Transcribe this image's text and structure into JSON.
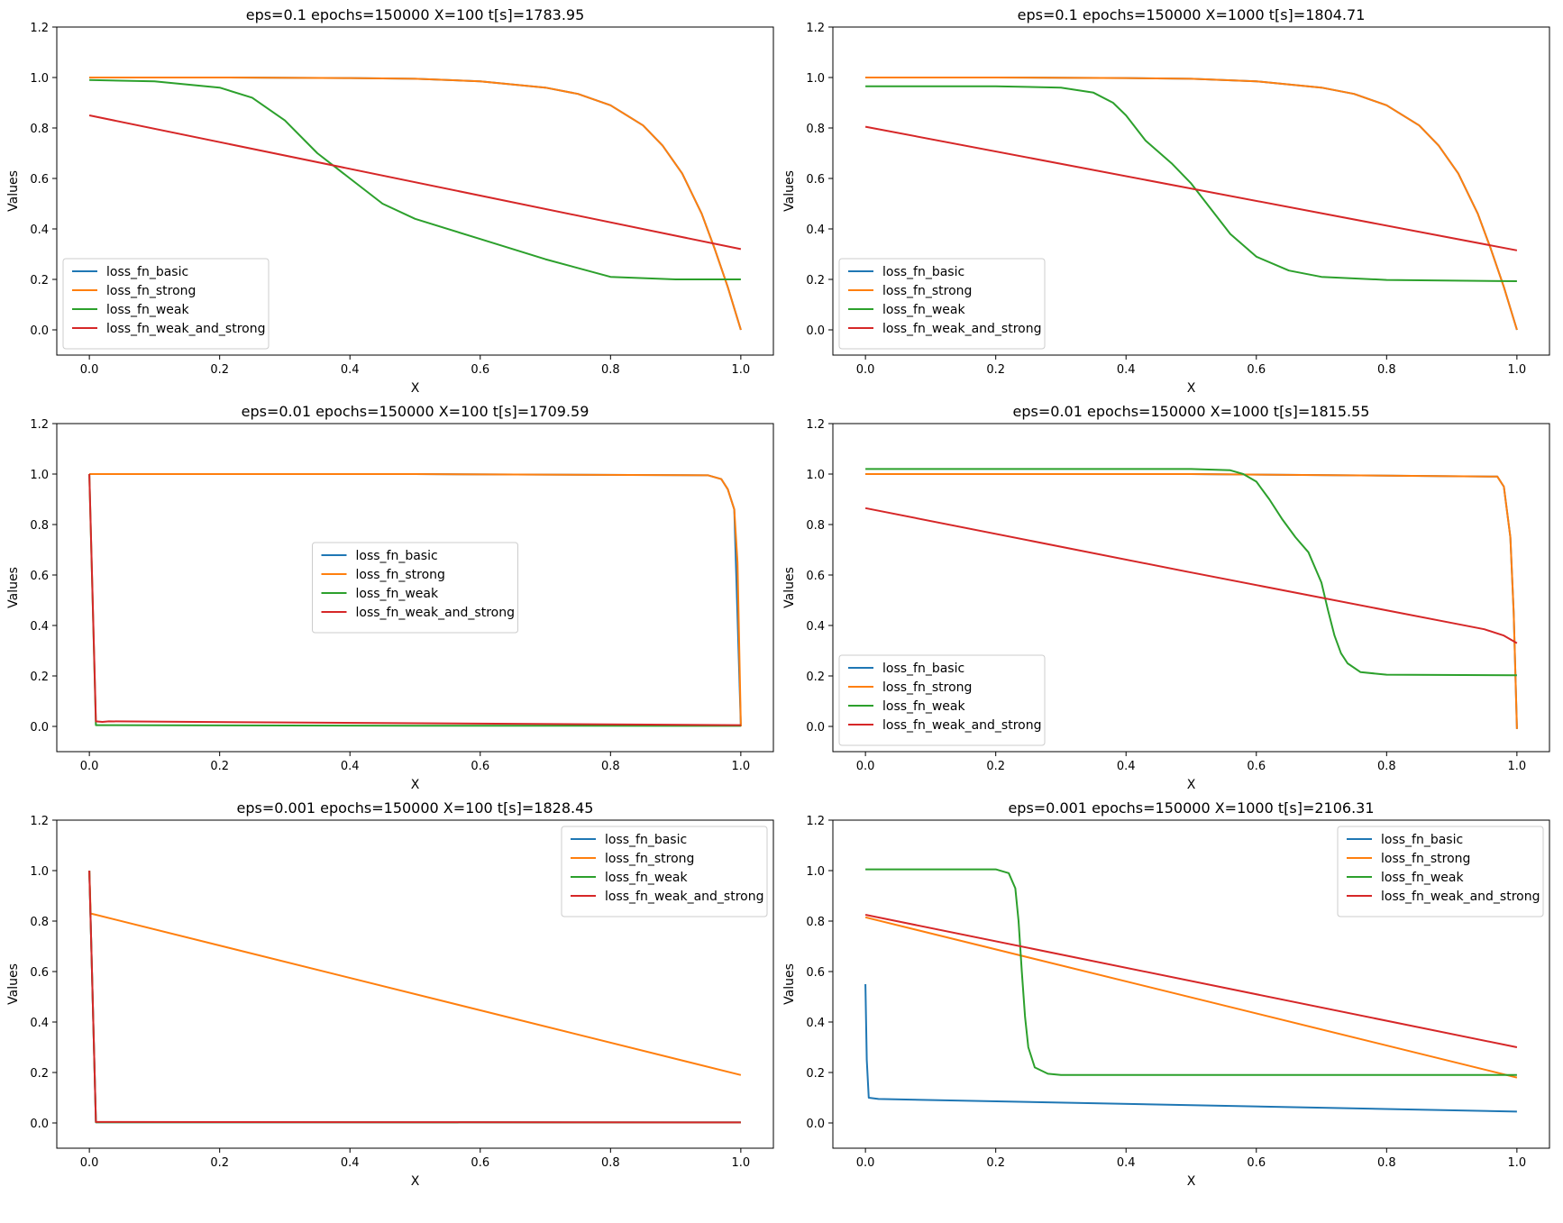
{
  "figure": {
    "series_names": [
      "loss_fn_basic",
      "loss_fn_strong",
      "loss_fn_weak",
      "loss_fn_weak_and_strong"
    ]
  },
  "colors": {
    "basic": "#1f77b4",
    "strong": "#ff7f0e",
    "weak": "#2ca02c",
    "weak_and_strong": "#d62728"
  },
  "chart_data": [
    {
      "type": "line",
      "title": "eps=0.1 epochs=150000 X=100 t[s]=1783.95",
      "xlabel": "X",
      "ylabel": "Values",
      "xlim": [
        -0.05,
        1.05
      ],
      "ylim": [
        -0.1,
        1.2
      ],
      "xticks": [
        "0.0",
        "0.2",
        "0.4",
        "0.6",
        "0.8",
        "1.0"
      ],
      "yticks": [
        "0.0",
        "0.2",
        "0.4",
        "0.6",
        "0.8",
        "1.0",
        "1.2"
      ],
      "legend": "lower-left",
      "series": [
        {
          "name": "loss_fn_basic",
          "color": "#1f77b4",
          "x": [
            0,
            0.2,
            0.4,
            0.5,
            0.6,
            0.7,
            0.75,
            0.8,
            0.85,
            0.88,
            0.91,
            0.94,
            0.96,
            0.98,
            1.0
          ],
          "y": [
            1.0,
            1.0,
            0.998,
            0.995,
            0.985,
            0.96,
            0.935,
            0.89,
            0.81,
            0.73,
            0.62,
            0.46,
            0.32,
            0.17,
            0.0
          ]
        },
        {
          "name": "loss_fn_strong",
          "color": "#ff7f0e",
          "x": [
            0,
            0.2,
            0.4,
            0.5,
            0.6,
            0.7,
            0.75,
            0.8,
            0.85,
            0.88,
            0.91,
            0.94,
            0.96,
            0.98,
            1.0
          ],
          "y": [
            1.0,
            1.0,
            0.998,
            0.995,
            0.985,
            0.96,
            0.935,
            0.89,
            0.81,
            0.73,
            0.62,
            0.46,
            0.32,
            0.17,
            0.0
          ]
        },
        {
          "name": "loss_fn_weak",
          "color": "#2ca02c",
          "x": [
            0,
            0.1,
            0.2,
            0.25,
            0.3,
            0.35,
            0.4,
            0.45,
            0.5,
            0.6,
            0.7,
            0.8,
            0.9,
            1.0
          ],
          "y": [
            0.99,
            0.985,
            0.96,
            0.92,
            0.83,
            0.7,
            0.6,
            0.5,
            0.44,
            0.36,
            0.28,
            0.21,
            0.2,
            0.2
          ]
        },
        {
          "name": "loss_fn_weak_and_strong",
          "color": "#d62728",
          "x": [
            0,
            1.0
          ],
          "y": [
            0.85,
            0.32
          ]
        }
      ]
    },
    {
      "type": "line",
      "title": "eps=0.1 epochs=150000 X=1000 t[s]=1804.71",
      "xlabel": "X",
      "ylabel": "Values",
      "xlim": [
        -0.05,
        1.05
      ],
      "ylim": [
        -0.1,
        1.2
      ],
      "xticks": [
        "0.0",
        "0.2",
        "0.4",
        "0.6",
        "0.8",
        "1.0"
      ],
      "yticks": [
        "0.0",
        "0.2",
        "0.4",
        "0.6",
        "0.8",
        "1.0",
        "1.2"
      ],
      "legend": "lower-left",
      "series": [
        {
          "name": "loss_fn_basic",
          "color": "#1f77b4",
          "x": [
            0,
            0.2,
            0.4,
            0.5,
            0.6,
            0.7,
            0.75,
            0.8,
            0.85,
            0.88,
            0.91,
            0.94,
            0.96,
            0.98,
            1.0
          ],
          "y": [
            1.0,
            1.0,
            0.998,
            0.995,
            0.985,
            0.96,
            0.935,
            0.89,
            0.81,
            0.73,
            0.62,
            0.46,
            0.32,
            0.17,
            0.0
          ]
        },
        {
          "name": "loss_fn_strong",
          "color": "#ff7f0e",
          "x": [
            0,
            0.2,
            0.4,
            0.5,
            0.6,
            0.7,
            0.75,
            0.8,
            0.85,
            0.88,
            0.91,
            0.94,
            0.96,
            0.98,
            1.0
          ],
          "y": [
            1.0,
            1.0,
            0.998,
            0.995,
            0.985,
            0.96,
            0.935,
            0.89,
            0.81,
            0.73,
            0.62,
            0.46,
            0.32,
            0.17,
            0.0
          ]
        },
        {
          "name": "loss_fn_weak",
          "color": "#2ca02c",
          "x": [
            0,
            0.2,
            0.3,
            0.35,
            0.38,
            0.4,
            0.43,
            0.47,
            0.5,
            0.53,
            0.56,
            0.6,
            0.65,
            0.7,
            0.8,
            1.0
          ],
          "y": [
            0.965,
            0.965,
            0.96,
            0.94,
            0.9,
            0.85,
            0.75,
            0.66,
            0.58,
            0.48,
            0.38,
            0.29,
            0.235,
            0.21,
            0.198,
            0.193
          ]
        },
        {
          "name": "loss_fn_weak_and_strong",
          "color": "#d62728",
          "x": [
            0,
            1.0
          ],
          "y": [
            0.805,
            0.315
          ]
        }
      ]
    },
    {
      "type": "line",
      "title": "eps=0.01 epochs=150000 X=100 t[s]=1709.59",
      "xlabel": "X",
      "ylabel": "Values",
      "xlim": [
        -0.05,
        1.05
      ],
      "ylim": [
        -0.1,
        1.2
      ],
      "xticks": [
        "0.0",
        "0.2",
        "0.4",
        "0.6",
        "0.8",
        "1.0"
      ],
      "yticks": [
        "0.0",
        "0.2",
        "0.4",
        "0.6",
        "0.8",
        "1.0",
        "1.2"
      ],
      "legend": "center",
      "series": [
        {
          "name": "loss_fn_basic",
          "color": "#1f77b4",
          "x": [
            0,
            0.5,
            0.95,
            0.97,
            0.98,
            0.99,
            1.0
          ],
          "y": [
            1.0,
            1.0,
            0.995,
            0.98,
            0.94,
            0.86,
            0.0
          ]
        },
        {
          "name": "loss_fn_strong",
          "color": "#ff7f0e",
          "x": [
            0,
            0.5,
            0.95,
            0.97,
            0.98,
            0.99,
            0.995,
            1.0
          ],
          "y": [
            1.0,
            1.0,
            0.995,
            0.98,
            0.94,
            0.86,
            0.65,
            0.0
          ]
        },
        {
          "name": "loss_fn_weak",
          "color": "#2ca02c",
          "x": [
            0,
            0.01,
            0.5,
            1.0
          ],
          "y": [
            1.0,
            0.005,
            0.003,
            0.002
          ]
        },
        {
          "name": "loss_fn_weak_and_strong",
          "color": "#d62728",
          "x": [
            0,
            0.01,
            0.02,
            0.03,
            1.0
          ],
          "y": [
            1.0,
            0.02,
            0.018,
            0.02,
            0.005
          ]
        }
      ]
    },
    {
      "type": "line",
      "title": "eps=0.01 epochs=150000 X=1000 t[s]=1815.55",
      "xlabel": "X",
      "ylabel": "Values",
      "xlim": [
        -0.05,
        1.05
      ],
      "ylim": [
        -0.1,
        1.2
      ],
      "xticks": [
        "0.0",
        "0.2",
        "0.4",
        "0.6",
        "0.8",
        "1.0"
      ],
      "yticks": [
        "0.0",
        "0.2",
        "0.4",
        "0.6",
        "0.8",
        "1.0",
        "1.2"
      ],
      "legend": "lower-left",
      "series": [
        {
          "name": "loss_fn_basic",
          "color": "#1f77b4",
          "x": [
            0,
            0.5,
            0.97,
            0.98,
            0.99,
            0.995,
            1.0
          ],
          "y": [
            1.0,
            1.0,
            0.99,
            0.95,
            0.75,
            0.45,
            -0.01
          ]
        },
        {
          "name": "loss_fn_strong",
          "color": "#ff7f0e",
          "x": [
            0,
            0.5,
            0.97,
            0.98,
            0.99,
            0.995,
            1.0
          ],
          "y": [
            1.0,
            1.0,
            0.99,
            0.95,
            0.75,
            0.45,
            -0.01
          ]
        },
        {
          "name": "loss_fn_weak",
          "color": "#2ca02c",
          "x": [
            0,
            0.5,
            0.56,
            0.58,
            0.6,
            0.62,
            0.64,
            0.66,
            0.68,
            0.7,
            0.71,
            0.72,
            0.73,
            0.74,
            0.76,
            0.8,
            1.0
          ],
          "y": [
            1.02,
            1.02,
            1.015,
            1.0,
            0.97,
            0.9,
            0.82,
            0.75,
            0.69,
            0.57,
            0.46,
            0.36,
            0.29,
            0.25,
            0.215,
            0.205,
            0.203
          ]
        },
        {
          "name": "loss_fn_weak_and_strong",
          "color": "#d62728",
          "x": [
            0,
            0.5,
            0.9,
            0.95,
            0.98,
            1.0
          ],
          "y": [
            0.865,
            0.61,
            0.41,
            0.385,
            0.36,
            0.33
          ]
        }
      ]
    },
    {
      "type": "line",
      "title": "eps=0.001 epochs=150000 X=100 t[s]=1828.45",
      "xlabel": "X",
      "ylabel": "Values",
      "xlim": [
        -0.05,
        1.05
      ],
      "ylim": [
        -0.1,
        1.2
      ],
      "xticks": [
        "0.0",
        "0.2",
        "0.4",
        "0.6",
        "0.8",
        "1.0"
      ],
      "yticks": [
        "0.0",
        "0.2",
        "0.4",
        "0.6",
        "0.8",
        "1.0",
        "1.2"
      ],
      "legend": "top-right",
      "series": [
        {
          "name": "loss_fn_basic",
          "color": "#1f77b4",
          "x": [
            0,
            0.01,
            1.0
          ],
          "y": [
            1.0,
            0.003,
            0.002
          ]
        },
        {
          "name": "loss_fn_strong",
          "color": "#ff7f0e",
          "x": [
            0,
            0.002,
            0.01,
            1.0
          ],
          "y": [
            1.0,
            0.83,
            0.825,
            0.19
          ]
        },
        {
          "name": "loss_fn_weak",
          "color": "#2ca02c",
          "x": [
            0,
            0.01,
            1.0
          ],
          "y": [
            1.0,
            0.003,
            0.002
          ]
        },
        {
          "name": "loss_fn_weak_and_strong",
          "color": "#d62728",
          "x": [
            0,
            0.01,
            1.0
          ],
          "y": [
            1.0,
            0.004,
            0.002
          ]
        }
      ]
    },
    {
      "type": "line",
      "title": "eps=0.001 epochs=150000 X=1000 t[s]=2106.31",
      "xlabel": "X",
      "ylabel": "Values",
      "xlim": [
        -0.05,
        1.05
      ],
      "ylim": [
        -0.1,
        1.2
      ],
      "xticks": [
        "0.0",
        "0.2",
        "0.4",
        "0.6",
        "0.8",
        "1.0"
      ],
      "yticks": [
        "0.0",
        "0.2",
        "0.4",
        "0.6",
        "0.8",
        "1.0",
        "1.2"
      ],
      "legend": "top-right",
      "series": [
        {
          "name": "loss_fn_basic",
          "color": "#1f77b4",
          "x": [
            0,
            0.002,
            0.005,
            0.02,
            1.0
          ],
          "y": [
            0.55,
            0.25,
            0.1,
            0.095,
            0.045
          ]
        },
        {
          "name": "loss_fn_strong",
          "color": "#ff7f0e",
          "x": [
            0,
            1.0
          ],
          "y": [
            0.815,
            0.18
          ]
        },
        {
          "name": "loss_fn_weak",
          "color": "#2ca02c",
          "x": [
            0,
            0.2,
            0.22,
            0.23,
            0.235,
            0.24,
            0.245,
            0.25,
            0.26,
            0.28,
            0.3,
            0.5,
            1.0
          ],
          "y": [
            1.005,
            1.005,
            0.99,
            0.93,
            0.8,
            0.6,
            0.42,
            0.3,
            0.22,
            0.195,
            0.19,
            0.19,
            0.19
          ]
        },
        {
          "name": "loss_fn_weak_and_strong",
          "color": "#d62728",
          "x": [
            0,
            1.0
          ],
          "y": [
            0.825,
            0.3
          ]
        }
      ]
    }
  ]
}
